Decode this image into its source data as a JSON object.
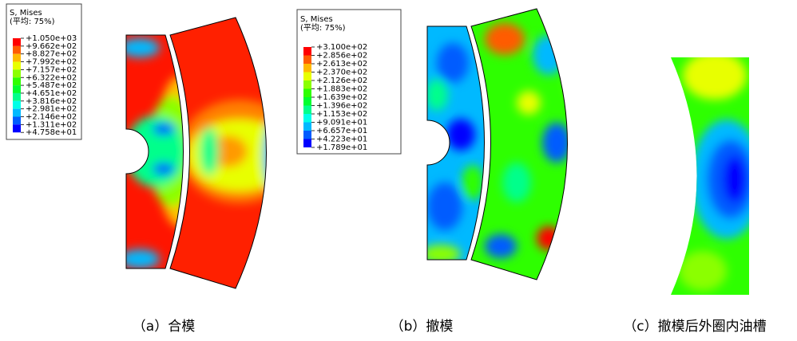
{
  "panels": [
    {
      "legend": {
        "title": "S, Mises",
        "subtitle": "(平均: 75%)",
        "levels": [
          "+1.050e+03",
          "+9.662e+02",
          "+8.827e+02",
          "+7.992e+02",
          "+7.157e+02",
          "+6.322e+02",
          "+5.487e+02",
          "+4.651e+02",
          "+3.816e+02",
          "+2.981e+02",
          "+2.146e+02",
          "+1.311e+02",
          "+4.758e+01"
        ]
      },
      "caption": "（a）合模"
    },
    {
      "legend": {
        "title": "S, Mises",
        "subtitle": "(平均: 75%)",
        "levels": [
          "+3.100e+02",
          "+2.856e+02",
          "+2.613e+02",
          "+2.370e+02",
          "+2.126e+02",
          "+1.883e+02",
          "+1.639e+02",
          "+1.396e+02",
          "+1.153e+02",
          "+9.091e+01",
          "+6.657e+01",
          "+4.223e+01",
          "+1.789e+01"
        ]
      },
      "caption": "（b）撤模"
    },
    {
      "caption": "（c）撤模后外圈内油槽"
    }
  ],
  "colormap": [
    "#ff0000",
    "#ff5c00",
    "#ffb900",
    "#e8ff00",
    "#8bff00",
    "#2eff00",
    "#00ff2e",
    "#00ff8b",
    "#00ffe8",
    "#00b9ff",
    "#005cff",
    "#0000ff"
  ]
}
